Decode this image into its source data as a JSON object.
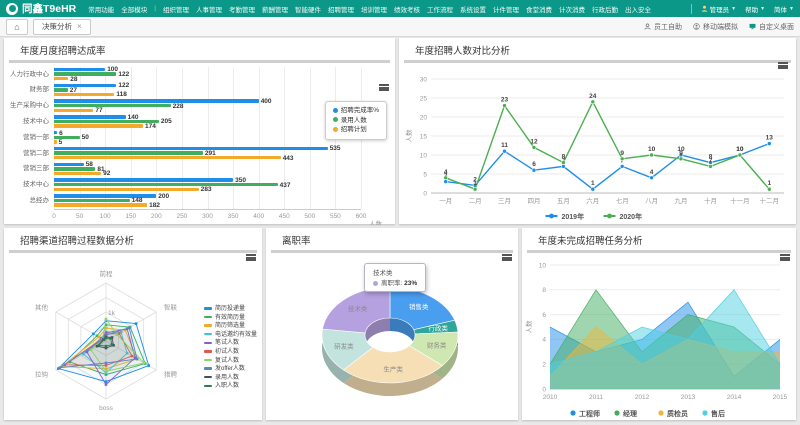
{
  "nav": {
    "brand": "同鑫T9eHR",
    "items": [
      "常用功能",
      "全部模块",
      "组织管理",
      "人事管理",
      "考勤管理",
      "薪酬管理",
      "智能硬件",
      "招聘管理",
      "培训管理",
      "绩效考核",
      "工作流程",
      "系统设置",
      "计件管理",
      "食堂消费",
      "计次消费",
      "行政后勤",
      "出入安全"
    ],
    "divider_after": 1,
    "user_name": "管理员",
    "help_label": "帮助",
    "lang_label": "简体"
  },
  "tabbar": {
    "active_tab": "决策分析",
    "tools": [
      "员工自助",
      "移动端模拟",
      "自定义桌面"
    ]
  },
  "chart_data": [
    {
      "id": "c1",
      "type": "bar",
      "orientation": "horizontal",
      "title": "年度月度招聘达成率",
      "categories": [
        "人力行政中心",
        "财务部",
        "生产采购中心",
        "技术中心",
        "营销一部",
        "营销二部",
        "营销三部",
        "技术中心",
        "总经办"
      ],
      "series": [
        {
          "name": "招聘完成率%",
          "color": "#1f8ee9",
          "values": [
            100,
            122,
            400,
            140,
            6,
            535,
            58,
            350,
            200
          ]
        },
        {
          "name": "录用人数",
          "color": "#3fae5f",
          "values": [
            122,
            27,
            228,
            205,
            50,
            291,
            81,
            437,
            148
          ]
        },
        {
          "name": "招聘计划",
          "color": "#f5a92b",
          "values": [
            28,
            118,
            77,
            174,
            5,
            443,
            92,
            283,
            182
          ]
        }
      ],
      "xlim": [
        0,
        600
      ],
      "xtick_step": 50,
      "xlabel": "人数",
      "grid": true
    },
    {
      "id": "c2",
      "type": "line",
      "title": "年度招聘人数对比分析",
      "categories": [
        "一月",
        "二月",
        "三月",
        "四月",
        "五月",
        "六月",
        "七月",
        "八月",
        "九月",
        "十月",
        "十一月",
        "十二月"
      ],
      "series": [
        {
          "name": "2019年",
          "color": "#1f8ee9",
          "values": [
            3,
            2,
            11,
            6,
            7,
            1,
            7,
            4,
            10,
            8,
            10,
            13
          ]
        },
        {
          "name": "2020年",
          "color": "#4caf50",
          "values": [
            4,
            1,
            23,
            12,
            8,
            24,
            9,
            10,
            9,
            7,
            10,
            1
          ]
        }
      ],
      "ylim": [
        0,
        30
      ],
      "ytick_step": 5,
      "ylabel": "人数",
      "legend_position": "bottom",
      "grid": true
    },
    {
      "id": "c3",
      "type": "radar",
      "title": "招聘渠道招聘过程数据分析",
      "indicators": [
        "前程",
        "智联",
        "猎聘",
        "boss",
        "拉钩",
        "其他"
      ],
      "max": 100,
      "tick_label": "1k",
      "series": [
        {
          "name": "简历投递量",
          "color": "#1f8ee9",
          "values": [
            35,
            60,
            85,
            70,
            95,
            25
          ]
        },
        {
          "name": "有效简历量",
          "color": "#3fae5f",
          "values": [
            28,
            48,
            78,
            58,
            72,
            18
          ]
        },
        {
          "name": "简历筛选量",
          "color": "#f5a92b",
          "values": [
            22,
            38,
            62,
            48,
            88,
            14
          ]
        },
        {
          "name": "电话邀约有效量",
          "color": "#3ec6d8",
          "values": [
            16,
            30,
            42,
            55,
            45,
            10
          ]
        },
        {
          "name": "笔试人数",
          "color": "#7b61d1",
          "values": [
            14,
            42,
            58,
            75,
            38,
            9
          ]
        },
        {
          "name": "初试人数",
          "color": "#e2574c",
          "values": [
            12,
            26,
            52,
            42,
            82,
            8
          ]
        },
        {
          "name": "复试人数",
          "color": "#8fd460",
          "values": [
            38,
            22,
            76,
            52,
            30,
            7
          ]
        },
        {
          "name": "发offer人数",
          "color": "#5b84c4",
          "values": [
            10,
            46,
            62,
            38,
            92,
            6
          ]
        },
        {
          "name": "录用人数",
          "color": "#44515c",
          "values": [
            7,
            12,
            15,
            12,
            18,
            5
          ]
        },
        {
          "name": "入职人数",
          "color": "#2e7d4f",
          "values": [
            5,
            9,
            12,
            9,
            14,
            4
          ]
        }
      ],
      "legend_position": "right"
    },
    {
      "id": "c4",
      "type": "pie",
      "title": "离职率",
      "slices": [
        {
          "label": "销售类",
          "value": 20,
          "color": "#4a9ef0"
        },
        {
          "label": "行政类",
          "value": 4,
          "color": "#2fa69b"
        },
        {
          "label": "财务类",
          "value": 12,
          "color": "#cfe7b0"
        },
        {
          "label": "生产类",
          "value": 26,
          "color": "#f7dfb5"
        },
        {
          "label": "研发类",
          "value": 15,
          "color": "#c3e4de"
        },
        {
          "label": "技术类",
          "value": 23,
          "color": "#b5a1e0"
        }
      ],
      "tooltip": {
        "title": "技术类",
        "metric": "离职率:",
        "value": "23%"
      }
    },
    {
      "id": "c5",
      "type": "area",
      "title": "年度未完成招聘任务分析",
      "x": [
        "2010",
        "2011",
        "2012",
        "2013",
        "2014",
        "2015"
      ],
      "series": [
        {
          "name": "工程师",
          "color": "#1f8ee9",
          "values": [
            5,
            3,
            4,
            7,
            1,
            4
          ]
        },
        {
          "name": "经理",
          "color": "#3fae5f",
          "values": [
            2,
            8,
            3,
            6,
            5,
            2
          ]
        },
        {
          "name": "质检员",
          "color": "#f0b53a",
          "values": [
            1,
            5,
            2,
            4,
            3,
            3
          ]
        },
        {
          "name": "售后",
          "color": "#4dd0e1",
          "values": [
            2,
            3,
            5,
            4,
            8,
            2
          ]
        }
      ],
      "ylim": [
        0,
        10
      ],
      "ytick_step": 2,
      "ylabel": "人数",
      "legend_position": "bottom",
      "grid": true
    }
  ]
}
